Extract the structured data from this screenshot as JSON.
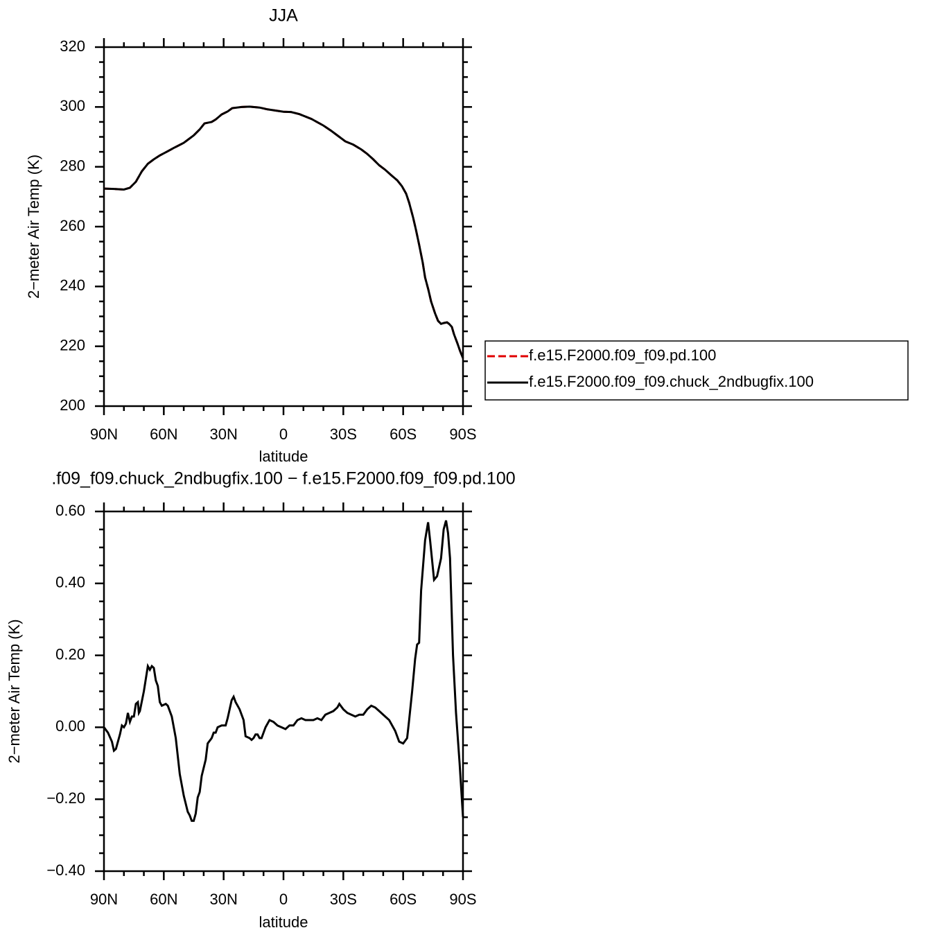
{
  "chart_data": [
    {
      "type": "line",
      "title": "JJA",
      "xlabel": "latitude",
      "ylabel": "2−meter Air Temp (K)",
      "x": [
        90,
        85,
        80,
        77,
        74,
        71,
        68,
        65,
        62,
        58,
        55,
        50,
        45,
        42,
        39.6,
        36,
        34,
        31,
        28,
        25.7,
        21,
        17,
        12,
        8,
        4,
        0,
        -3.8,
        -8,
        -14,
        -20,
        -24,
        -28,
        -31,
        -35,
        -39,
        -42,
        -45,
        -48,
        -51,
        -54,
        -57,
        -59.4,
        -61.5,
        -63,
        -65,
        -66.4,
        -68,
        -69.8,
        -71,
        -72.6,
        -74,
        -76,
        -77.5,
        -79,
        -80.5,
        -82,
        -83,
        -84.4,
        -85.5,
        -87.2,
        -88.5,
        -90
      ],
      "series": [
        {
          "name": "f.e15.F2000.f09_f09.pd.100",
          "color": "#e00000",
          "dashed": true,
          "values": [
            272.7,
            272.6,
            272.4,
            273,
            275,
            278.5,
            281,
            282.5,
            283.8,
            285.2,
            286.3,
            288,
            290.5,
            292.5,
            294.5,
            295,
            295.8,
            297.5,
            298.5,
            299.6,
            300,
            300.1,
            299.8,
            299.2,
            298.8,
            298.4,
            298.3,
            297.6,
            296,
            293.8,
            292,
            290,
            288.5,
            287.4,
            285.8,
            284.3,
            282.5,
            280.5,
            279,
            277.2,
            275.5,
            273.5,
            271,
            268,
            263,
            259,
            254,
            248,
            243,
            239,
            235,
            231,
            228.5,
            227.5,
            227.8,
            228,
            227.5,
            226.5,
            224,
            221,
            218.5,
            216
          ]
        },
        {
          "name": "f.e15.F2000.f09_f09.chuck_2ndbugfix.100",
          "color": "#000000",
          "dashed": false,
          "values": [
            272.7,
            272.6,
            272.4,
            273,
            275,
            278.5,
            281,
            282.5,
            283.8,
            285.2,
            286.3,
            288,
            290.5,
            292.5,
            294.5,
            295,
            295.8,
            297.5,
            298.5,
            299.6,
            300,
            300.1,
            299.8,
            299.2,
            298.8,
            298.4,
            298.3,
            297.6,
            296,
            293.8,
            292,
            290,
            288.5,
            287.4,
            285.8,
            284.3,
            282.5,
            280.5,
            279,
            277.2,
            275.5,
            273.5,
            271,
            268,
            263,
            259,
            254,
            248,
            243,
            239,
            235,
            231,
            228.5,
            227.5,
            227.8,
            228,
            227.5,
            226.5,
            224,
            221,
            218.5,
            216
          ]
        }
      ],
      "xlim": [
        90,
        -90
      ],
      "xticks": [
        {
          "value": 90,
          "label": "90N"
        },
        {
          "value": 60,
          "label": "60N"
        },
        {
          "value": 30,
          "label": "30N"
        },
        0,
        {
          "value": -30,
          "label": "30S"
        },
        {
          "value": -60,
          "label": "60S"
        },
        {
          "value": -90,
          "label": "90S"
        }
      ],
      "ylim": [
        200,
        320
      ],
      "yticks": [
        200,
        220,
        240,
        260,
        280,
        300,
        320
      ],
      "legend": "right"
    },
    {
      "type": "line",
      "title": ".f09_f09.chuck_2ndbugfix.100 − f.e15.F2000.f09_f09.pd.100",
      "xlabel": "latitude",
      "ylabel": "2−meter Air Temp (K)",
      "x": [
        90,
        88,
        86,
        85,
        84,
        82,
        81,
        80,
        79,
        78,
        77,
        76,
        75,
        74,
        73,
        72.5,
        72,
        70,
        68,
        67,
        66,
        65,
        64,
        63,
        62,
        61,
        59,
        58,
        56,
        54,
        52,
        50,
        48,
        47,
        46,
        45,
        44,
        43,
        42,
        41,
        39,
        38,
        36,
        35,
        34,
        33,
        31,
        29,
        28,
        26,
        25,
        24,
        22,
        21,
        20,
        19,
        17,
        16,
        15,
        14,
        13,
        12,
        11,
        9,
        7,
        5,
        3,
        1,
        -1,
        -3,
        -5,
        -7,
        -9,
        -11,
        -13,
        -15,
        -17,
        -19,
        -21,
        -23,
        -25,
        -27,
        -28,
        -30,
        -32,
        -34,
        -36,
        -38,
        -40,
        -42,
        -44,
        -46,
        -48,
        -50,
        -53,
        -56,
        -58,
        -60,
        -62,
        -63,
        -64.5,
        -66,
        -67,
        -68,
        -69,
        -71,
        -72.5,
        -73.5,
        -75.5,
        -77,
        -79,
        -80.3,
        -81.5,
        -82.5,
        -83.5,
        -85,
        -86.5,
        -88.3,
        -90
      ],
      "values": [
        0,
        -0.015,
        -0.04,
        -0.065,
        -0.06,
        -0.02,
        0.005,
        0,
        0.01,
        0.04,
        0.015,
        0.03,
        0.03,
        0.065,
        0.07,
        0.04,
        0.045,
        0.1,
        0.17,
        0.16,
        0.17,
        0.165,
        0.13,
        0.115,
        0.07,
        0.06,
        0.065,
        0.06,
        0.03,
        -0.03,
        -0.13,
        -0.19,
        -0.235,
        -0.245,
        -0.26,
        -0.26,
        -0.24,
        -0.195,
        -0.18,
        -0.135,
        -0.09,
        -0.045,
        -0.03,
        -0.015,
        -0.015,
        0,
        0.005,
        0.005,
        0.025,
        0.075,
        0.085,
        0.07,
        0.05,
        0.035,
        0.02,
        -0.025,
        -0.03,
        -0.035,
        -0.03,
        -0.02,
        -0.02,
        -0.03,
        -0.03,
        0,
        0.02,
        0.015,
        0.005,
        0,
        -0.005,
        0.005,
        0.005,
        0.02,
        0.025,
        0.02,
        0.02,
        0.02,
        0.025,
        0.02,
        0.035,
        0.04,
        0.045,
        0.055,
        0.065,
        0.05,
        0.04,
        0.035,
        0.03,
        0.035,
        0.035,
        0.05,
        0.06,
        0.055,
        0.045,
        0.035,
        0.02,
        -0.01,
        -0.04,
        -0.045,
        -0.03,
        0.02,
        0.1,
        0.19,
        0.23,
        0.235,
        0.38,
        0.52,
        0.57,
        0.52,
        0.41,
        0.42,
        0.47,
        0.55,
        0.575,
        0.54,
        0.47,
        0.2,
        0.04,
        -0.1,
        -0.25
      ],
      "color": "#000000",
      "xlim": [
        90,
        -90
      ],
      "xticks": [
        {
          "value": 90,
          "label": "90N"
        },
        {
          "value": 60,
          "label": "60N"
        },
        {
          "value": 30,
          "label": "30N"
        },
        0,
        {
          "value": -30,
          "label": "30S"
        },
        {
          "value": -60,
          "label": "60S"
        },
        {
          "value": -90,
          "label": "90S"
        }
      ],
      "ylim": [
        -0.4,
        0.6
      ],
      "yticks": [
        {
          "value": -0.4,
          "label": "−0.40"
        },
        {
          "value": -0.2,
          "label": "−0.20"
        },
        {
          "value": 0,
          "label": "0.00"
        },
        {
          "value": 0.2,
          "label": "0.20"
        },
        {
          "value": 0.4,
          "label": "0.40"
        },
        {
          "value": 0.6,
          "label": "0.60"
        }
      ]
    }
  ]
}
